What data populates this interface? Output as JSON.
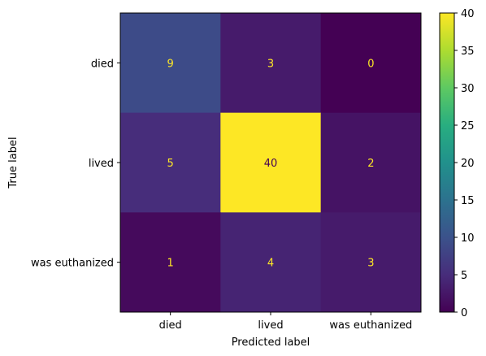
{
  "chart_data": {
    "type": "heatmap",
    "title": "",
    "xlabel": "Predicted label",
    "ylabel": "True label",
    "x_categories": [
      "died",
      "lived",
      "was euthanized"
    ],
    "y_categories": [
      "died",
      "lived",
      "was euthanized"
    ],
    "values": [
      [
        9,
        3,
        0
      ],
      [
        5,
        40,
        2
      ],
      [
        1,
        4,
        3
      ]
    ],
    "colormap": "viridis",
    "colorbar": {
      "min": 0,
      "max": 40,
      "ticks": [
        0,
        5,
        10,
        15,
        20,
        25,
        30,
        35,
        40
      ]
    },
    "annotation_colors": {
      "on_dark": "#fde725",
      "on_light": "#440154"
    },
    "grid": false
  }
}
